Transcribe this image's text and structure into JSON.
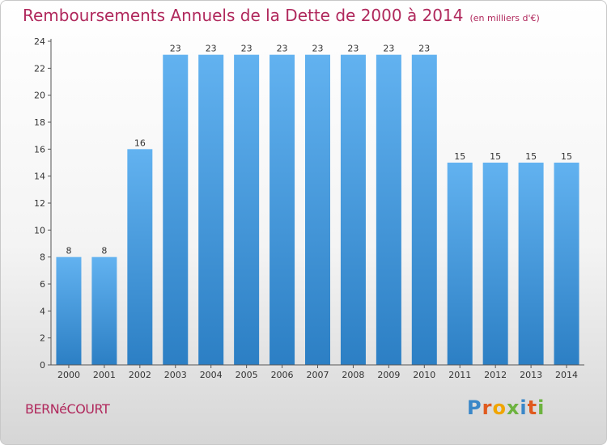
{
  "header": {
    "title": "Remboursements Annuels de la Dette de 2000 à 2014",
    "unit": "(en milliers d'€)"
  },
  "footer": {
    "commune": "BERNéCOURT",
    "logo_letters": [
      "P",
      "r",
      "o",
      "x",
      "i",
      "t",
      "i"
    ],
    "logo_colors": [
      "#3a87c8",
      "#e05a1e",
      "#f0a500",
      "#6db33f",
      "#3a87c8",
      "#e05a1e",
      "#6db33f"
    ]
  },
  "colors": {
    "bar_top": "#62b2f0",
    "bar_bottom": "#2c7fc4",
    "title": "#b0285c"
  },
  "chart_data": {
    "type": "bar",
    "title": "Remboursements Annuels de la Dette de 2000 à 2014",
    "xlabel": "",
    "ylabel": "",
    "ylim": [
      0,
      24
    ],
    "yticks": [
      0,
      2,
      4,
      6,
      8,
      10,
      12,
      14,
      16,
      18,
      20,
      22,
      24
    ],
    "grid": false,
    "categories": [
      "2000",
      "2001",
      "2002",
      "2003",
      "2004",
      "2005",
      "2006",
      "2007",
      "2008",
      "2009",
      "2010",
      "2011",
      "2012",
      "2013",
      "2014"
    ],
    "values": [
      8,
      8,
      16,
      23,
      23,
      23,
      23,
      23,
      23,
      23,
      23,
      15,
      15,
      15,
      15
    ]
  }
}
